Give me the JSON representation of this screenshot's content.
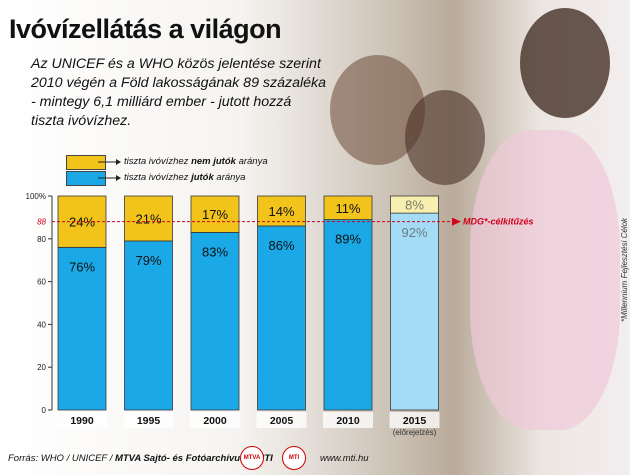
{
  "title": "Ivóvízellátás a világon",
  "subtitle_lines": [
    "Az UNICEF és a WHO közös jelentése szerint",
    "2010 végén a Föld lakosságának 89 százaléka",
    "- mintegy 6,1 milliárd ember - jutott hozzá",
    "tiszta ivóvízhez."
  ],
  "legend": {
    "no_access_prefix": "tiszta ivóvízhez ",
    "no_access_bold": "nem jutók",
    "no_access_suffix": " aránya",
    "access_prefix": "tiszta ivóvízhez ",
    "access_bold": "jutók",
    "access_suffix": " aránya"
  },
  "target_label": "MDG*-célkitűzés",
  "side_note": "*Millennium Fejlesztési Célok",
  "footer": {
    "source_prefix": "Forrás: WHO / UNICEF / ",
    "source_bold": "MTVA Sajtó- és Fotóarchívum / MTI",
    "credit": "www.mti.hu",
    "logo1": "MTVA",
    "logo2": "MTI"
  },
  "colors": {
    "access": "#1aa9e6",
    "no_access": "#f2c31a",
    "access_projection": "#a4dcf5",
    "no_access_projection": "#f7efb0",
    "target_line": "#d0021b"
  },
  "chart_data": {
    "type": "bar",
    "stacked": true,
    "categories": [
      "1990",
      "1995",
      "2000",
      "2005",
      "2010",
      "2015"
    ],
    "category_notes": [
      "",
      "",
      "",
      "",
      "",
      "(előrejelzés)"
    ],
    "series": [
      {
        "name": "tiszta ivóvízhez jutók aránya",
        "values": [
          76,
          79,
          83,
          86,
          89,
          92
        ],
        "labels": [
          "76%",
          "79%",
          "83%",
          "86%",
          "89%",
          "92%"
        ]
      },
      {
        "name": "tiszta ivóvízhez nem jutók aránya",
        "values": [
          24,
          21,
          17,
          14,
          11,
          8
        ],
        "labels": [
          "24%",
          "21%",
          "17%",
          "14%",
          "11%",
          "8%"
        ]
      }
    ],
    "projection_index": 5,
    "target_value": 88,
    "target_tick_label": "88",
    "yticks": [
      0,
      20,
      40,
      60,
      80,
      100
    ],
    "ytick_labels": [
      "0",
      "20",
      "40",
      "60",
      "80",
      "100%"
    ],
    "ylim": [
      0,
      100
    ],
    "grid": false
  }
}
